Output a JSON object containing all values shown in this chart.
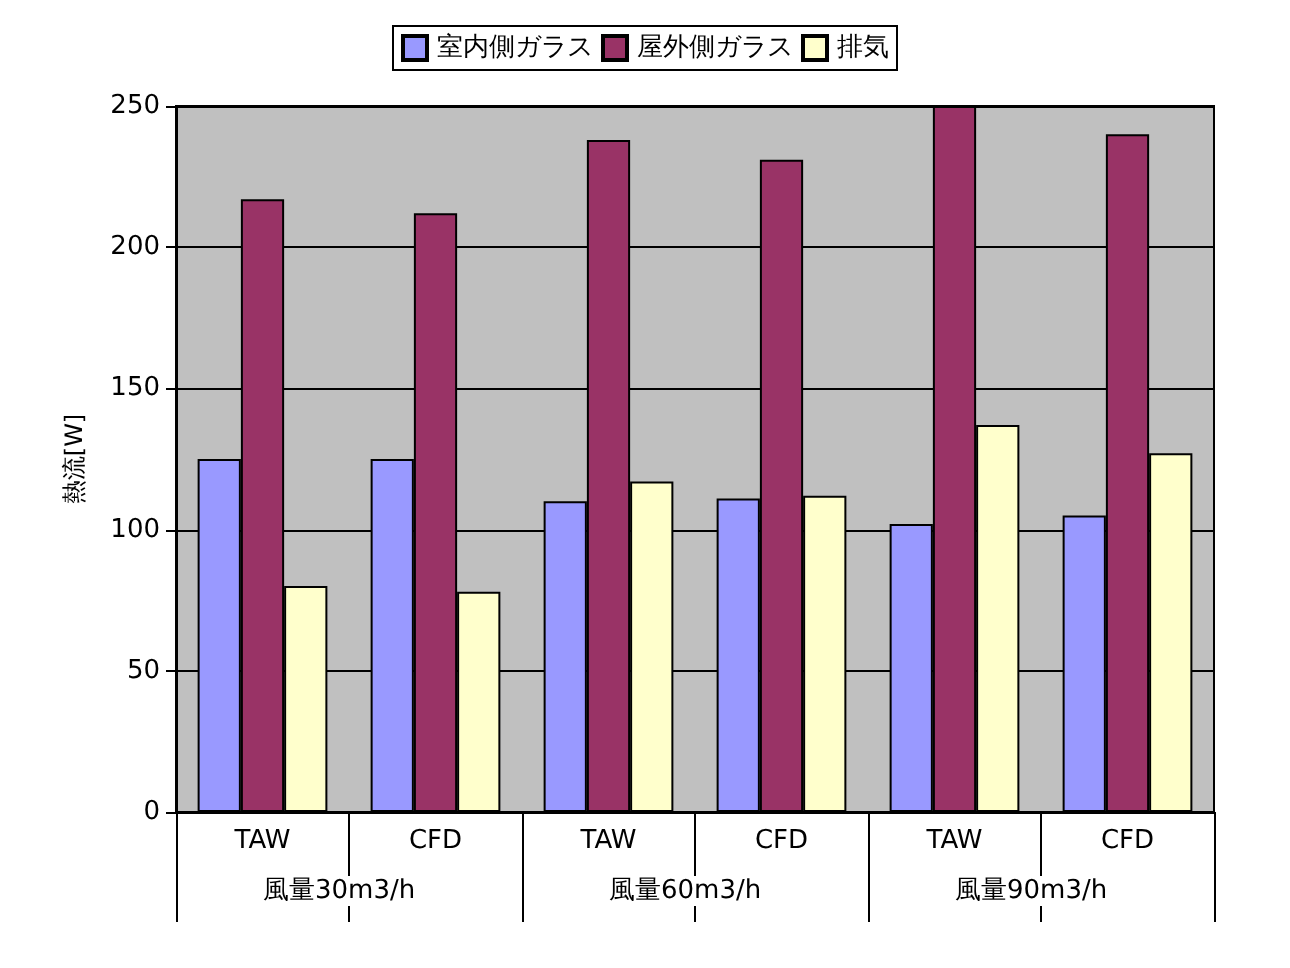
{
  "chart_data": {
    "type": "bar",
    "ylabel": "熱流[W]",
    "categories": [
      "TAW",
      "CFD",
      "TAW",
      "CFD",
      "TAW",
      "CFD"
    ],
    "series": [
      {
        "name": "室内側ガラス",
        "color": "#9999ff",
        "values": [
          125,
          125,
          110,
          111,
          102,
          105
        ]
      },
      {
        "name": "屋外側ガラス",
        "color": "#993366",
        "values": [
          217,
          212,
          238,
          231,
          250,
          240
        ]
      },
      {
        "name": "排気",
        "color": "#ffffcc",
        "values": [
          80,
          78,
          117,
          112,
          137,
          127
        ]
      }
    ],
    "annotations": [
      "風量30m3/h",
      "風量60m3/h",
      "風量90m3/h"
    ],
    "ylim": [
      0,
      250
    ],
    "yticks": [
      0,
      50,
      100,
      150,
      200,
      250
    ],
    "grid": "y",
    "legend": "top"
  }
}
